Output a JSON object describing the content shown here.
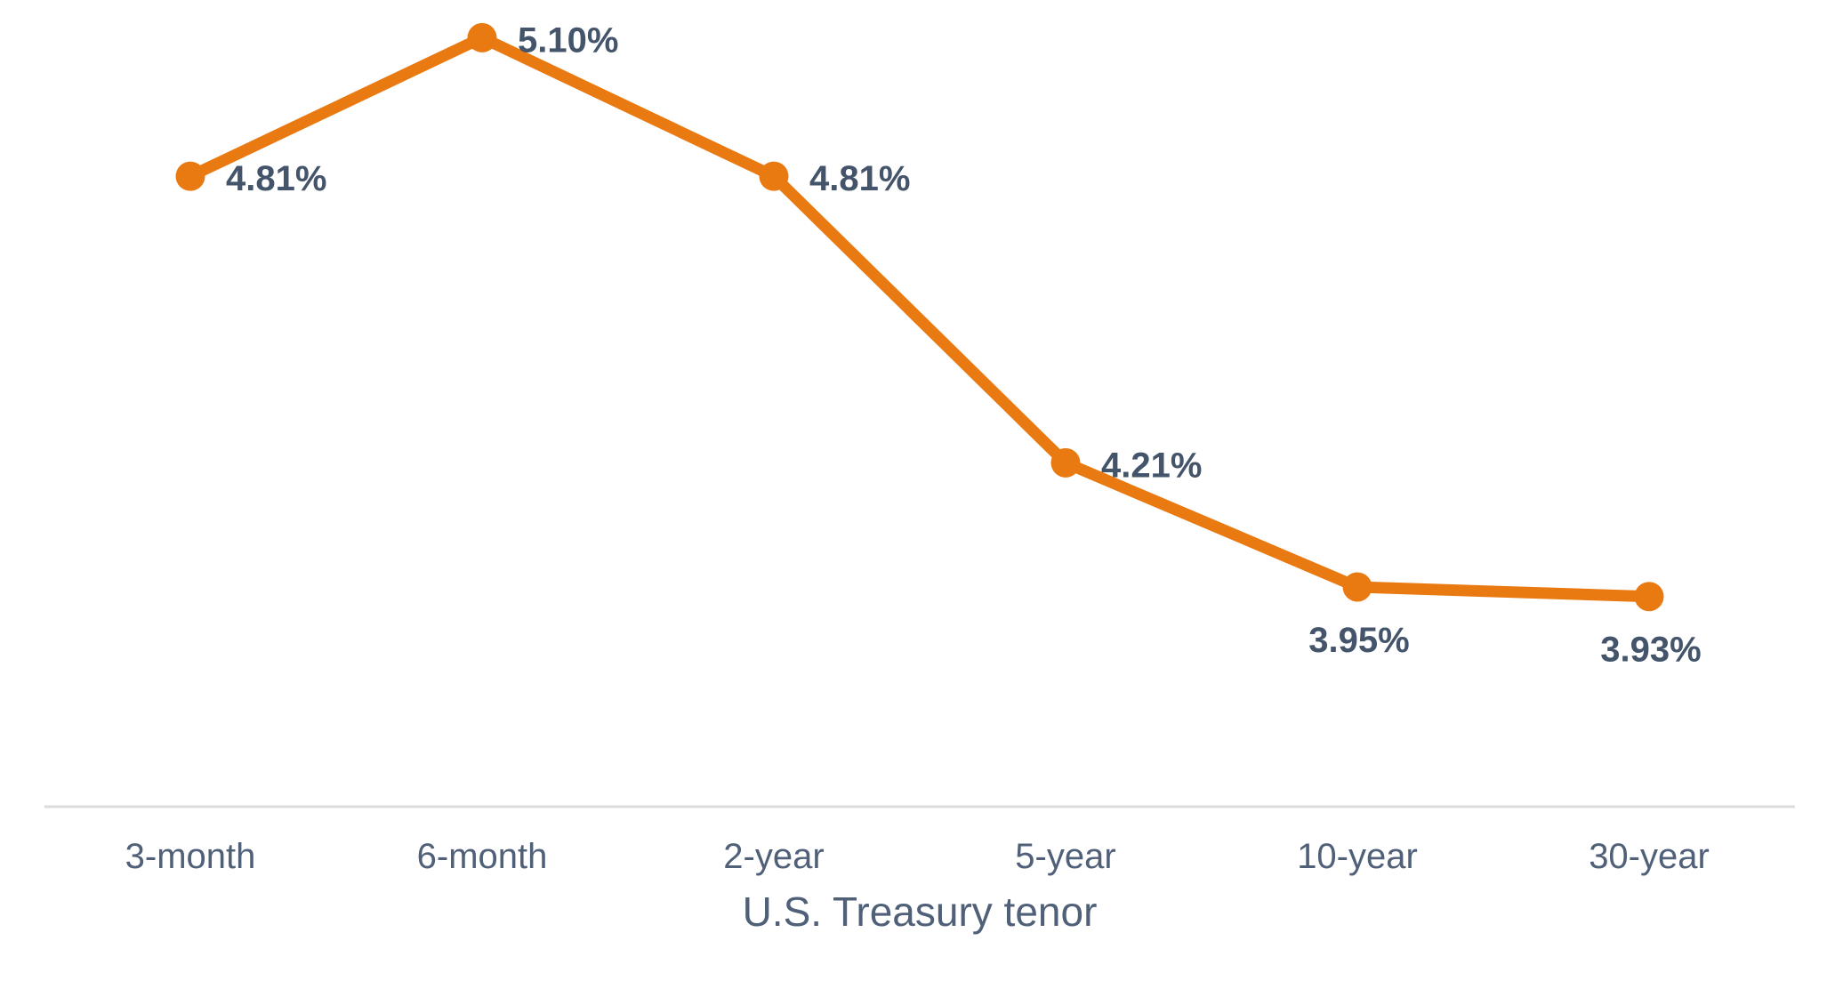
{
  "chart_data": {
    "type": "line",
    "title": "",
    "xlabel": "U.S. Treasury tenor",
    "ylabel": "",
    "categories": [
      "3-month",
      "6-month",
      "2-year",
      "5-year",
      "10-year",
      "30-year"
    ],
    "values": [
      4.81,
      5.1,
      4.81,
      4.21,
      3.95,
      3.93
    ],
    "data_labels": [
      "4.81%",
      "5.10%",
      "4.81%",
      "4.21%",
      "3.95%",
      "3.93%"
    ],
    "data_label_placement": [
      "right",
      "right",
      "right",
      "right",
      "below",
      "below"
    ],
    "ylim": [
      3.5,
      5.2
    ],
    "grid": false,
    "legend": "none",
    "colors": {
      "line": "#E97A12",
      "marker": "#E97A12",
      "data_label": "#44546A",
      "axis_label": "#4F6078",
      "axis_title": "#4F6078",
      "axis_line": "#D9DBDD"
    }
  }
}
